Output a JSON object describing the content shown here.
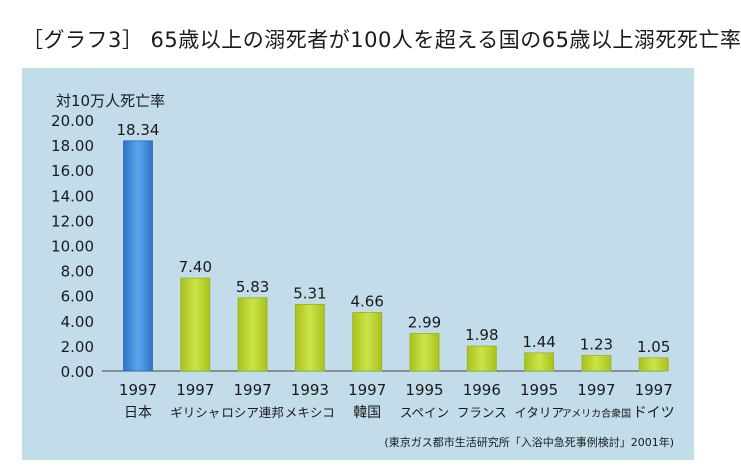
{
  "title": "［グラフ3］ 65歳以上の溺死者が100人を超える国の65歳以上溺死死亡率",
  "chart_data": {
    "type": "bar",
    "ylabel": "対10万人死亡率",
    "ylim": [
      0,
      20
    ],
    "yticks": [
      "20.00",
      "18.00",
      "16.00",
      "14.00",
      "12.00",
      "10.00",
      "8.00",
      "6.00",
      "4.00",
      "2.00",
      "0.00"
    ],
    "categories": [
      {
        "year": "1997",
        "country": "日本"
      },
      {
        "year": "1997",
        "country": "ギリシャ"
      },
      {
        "year": "1997",
        "country": "ロシア連邦"
      },
      {
        "year": "1993",
        "country": "メキシコ"
      },
      {
        "year": "1997",
        "country": "韓国"
      },
      {
        "year": "1995",
        "country": "スペイン"
      },
      {
        "year": "1996",
        "country": "フランス"
      },
      {
        "year": "1995",
        "country": "イタリア"
      },
      {
        "year": "1997",
        "country": "アメリカ合衆国"
      },
      {
        "year": "1997",
        "country": "ドイツ"
      }
    ],
    "values": [
      18.34,
      7.4,
      5.83,
      5.31,
      4.66,
      2.99,
      1.98,
      1.44,
      1.23,
      1.05
    ],
    "value_labels": [
      "18.34",
      "7.40",
      "5.83",
      "5.31",
      "4.66",
      "2.99",
      "1.98",
      "1.44",
      "1.23",
      "1.05"
    ],
    "colors": {
      "highlight": "#3a86d8",
      "bar": "#b6d12a",
      "axis": "#333333"
    },
    "source": "(東京ガス都市生活研究所「入浴中急死事例検討」2001年)"
  }
}
